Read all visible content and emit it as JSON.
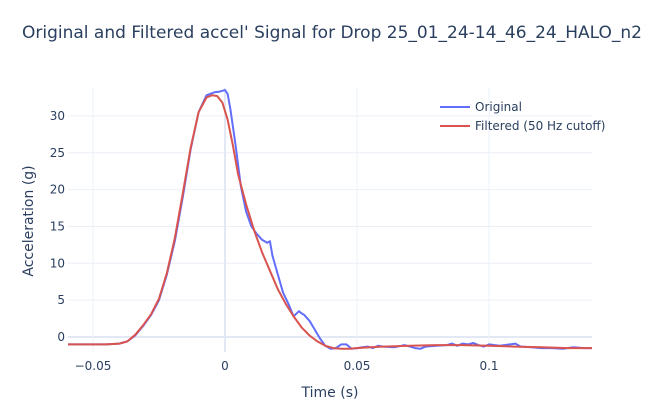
{
  "chart_data": {
    "type": "line",
    "title": "Original and Filtered accel' Signal for Drop 25_01_24-14_46_24_HALO_n2",
    "xlabel": "Time (s)",
    "ylabel": "Acceleration (g)",
    "xlim": [
      -0.0595,
      0.139
    ],
    "ylim": [
      -2.0,
      34.0
    ],
    "xticks": [
      -0.05,
      0,
      0.05,
      0.1
    ],
    "xtick_labels": [
      "−0.05",
      "0",
      "0.05",
      "0.1"
    ],
    "yticks": [
      0,
      5,
      10,
      15,
      20,
      25,
      30
    ],
    "ytick_labels": [
      "0",
      "5",
      "10",
      "15",
      "20",
      "25",
      "30"
    ],
    "grid": true,
    "legend_position": "top-right inside",
    "series": [
      {
        "name": "Original",
        "color": "#636efa",
        "x": [
          -0.0595,
          -0.05,
          -0.045,
          -0.04,
          -0.037,
          -0.034,
          -0.031,
          -0.028,
          -0.025,
          -0.022,
          -0.019,
          -0.016,
          -0.013,
          -0.01,
          -0.007,
          -0.004,
          -0.002,
          0.0,
          0.001,
          0.002,
          0.004,
          0.006,
          0.008,
          0.01,
          0.012,
          0.014,
          0.016,
          0.017,
          0.018,
          0.02,
          0.022,
          0.024,
          0.026,
          0.028,
          0.029,
          0.03,
          0.032,
          0.034,
          0.036,
          0.038,
          0.04,
          0.042,
          0.044,
          0.046,
          0.048,
          0.05,
          0.052,
          0.054,
          0.056,
          0.058,
          0.06,
          0.064,
          0.068,
          0.072,
          0.074,
          0.076,
          0.08,
          0.084,
          0.086,
          0.088,
          0.09,
          0.092,
          0.094,
          0.096,
          0.098,
          0.1,
          0.104,
          0.108,
          0.11,
          0.112,
          0.116,
          0.12,
          0.124,
          0.128,
          0.132,
          0.136,
          0.139
        ],
        "y": [
          -1.0,
          -1.0,
          -1.0,
          -0.9,
          -0.6,
          0.2,
          1.5,
          3.0,
          5.0,
          8.5,
          13.0,
          19.0,
          25.5,
          30.5,
          32.8,
          33.2,
          33.3,
          33.5,
          33.0,
          31.0,
          26.0,
          20.5,
          17.0,
          15.0,
          14.0,
          13.2,
          12.8,
          13.0,
          11.0,
          8.5,
          6.0,
          4.5,
          2.8,
          3.5,
          3.2,
          3.0,
          2.2,
          1.0,
          -0.2,
          -1.2,
          -1.6,
          -1.5,
          -1.0,
          -1.0,
          -1.6,
          -1.5,
          -1.4,
          -1.3,
          -1.5,
          -1.2,
          -1.3,
          -1.4,
          -1.1,
          -1.5,
          -1.6,
          -1.3,
          -1.2,
          -1.1,
          -0.9,
          -1.2,
          -0.9,
          -1.0,
          -0.8,
          -1.1,
          -1.3,
          -1.0,
          -1.2,
          -1.0,
          -0.9,
          -1.3,
          -1.4,
          -1.5,
          -1.5,
          -1.6,
          -1.4,
          -1.5,
          -1.5
        ]
      },
      {
        "name": "Filtered (50 Hz cutoff)",
        "color": "#d9534f",
        "x": [
          -0.0595,
          -0.05,
          -0.045,
          -0.04,
          -0.037,
          -0.034,
          -0.031,
          -0.028,
          -0.025,
          -0.022,
          -0.019,
          -0.016,
          -0.013,
          -0.01,
          -0.007,
          -0.005,
          -0.003,
          -0.001,
          0.001,
          0.003,
          0.005,
          0.008,
          0.011,
          0.014,
          0.017,
          0.02,
          0.023,
          0.026,
          0.029,
          0.032,
          0.035,
          0.038,
          0.041,
          0.044,
          0.047,
          0.05,
          0.055,
          0.06,
          0.07,
          0.08,
          0.09,
          0.1,
          0.11,
          0.12,
          0.13,
          0.139
        ],
        "y": [
          -1.0,
          -1.0,
          -1.0,
          -0.9,
          -0.6,
          0.3,
          1.6,
          3.1,
          5.2,
          8.7,
          13.4,
          19.5,
          25.7,
          30.5,
          32.5,
          32.8,
          32.7,
          31.8,
          29.5,
          26.0,
          22.0,
          18.0,
          14.5,
          11.5,
          9.0,
          6.5,
          4.5,
          2.8,
          1.3,
          0.2,
          -0.6,
          -1.2,
          -1.5,
          -1.6,
          -1.6,
          -1.5,
          -1.4,
          -1.3,
          -1.2,
          -1.1,
          -1.1,
          -1.2,
          -1.3,
          -1.4,
          -1.5,
          -1.5
        ]
      }
    ]
  }
}
